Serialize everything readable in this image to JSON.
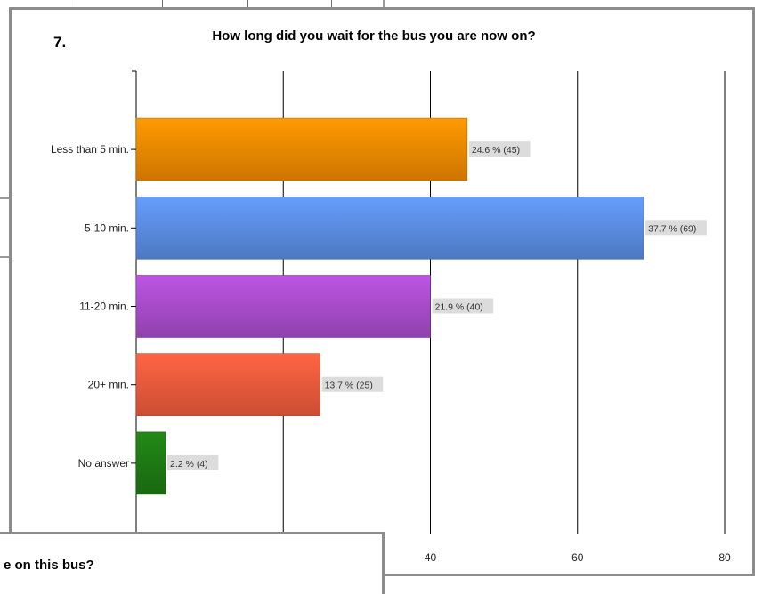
{
  "question": {
    "number": "7.",
    "title": "How long did you wait for the bus you are now on?"
  },
  "next_question": {
    "partial_text": "e on this bus?"
  },
  "chart_data": {
    "type": "bar",
    "orientation": "horizontal",
    "title": "How long did you wait for the bus you are now on?",
    "categories": [
      "Less than 5 min.",
      "5-10 min.",
      "11-20 min.",
      "20+ min.",
      "No answer"
    ],
    "values": [
      45,
      69,
      40,
      25,
      4
    ],
    "data_labels": [
      "24.6 % (45)",
      "37.7 % (69)",
      "21.9 % (40)",
      "13.7 % (25)",
      "2.2 % (4)"
    ],
    "xlim": [
      0,
      80
    ],
    "x_ticks": [
      40,
      60,
      80
    ],
    "grid": true,
    "colors": [
      "#f08a00",
      "#5b8de3",
      "#a94ccc",
      "#ef5a3c",
      "#1e7a14"
    ]
  }
}
